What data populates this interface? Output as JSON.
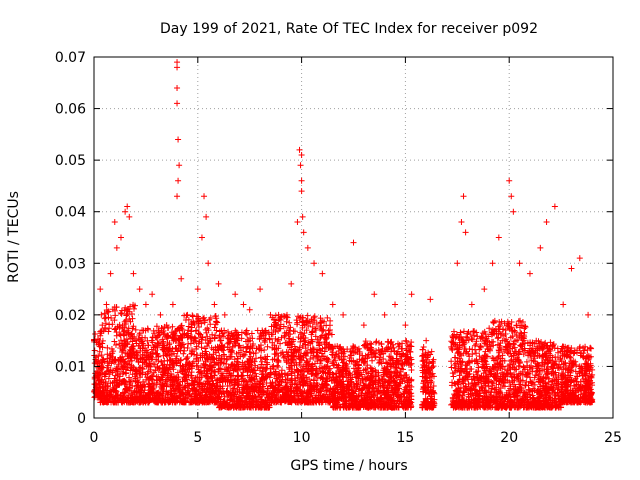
{
  "chart_data": {
    "type": "scatter",
    "title": "Day 199 of 2021, Rate Of TEC Index for receiver p092",
    "xlabel": "GPS time / hours",
    "ylabel": "ROTI / TECUs",
    "xlim": [
      0,
      25
    ],
    "ylim": [
      0,
      0.07
    ],
    "x_ticks": [
      "0",
      "5",
      "10",
      "15",
      "20",
      "25"
    ],
    "y_ticks": [
      "0",
      "0.01",
      "0.02",
      "0.03",
      "0.04",
      "0.05",
      "0.06",
      "0.07"
    ],
    "grid": true,
    "marker": "+",
    "color": "#ff0000",
    "series": [
      {
        "points": [
          [
            0.1,
            0.006
          ],
          [
            0.2,
            0.012
          ],
          [
            0.3,
            0.025
          ],
          [
            0.4,
            0.018
          ],
          [
            0.6,
            0.022
          ],
          [
            0.8,
            0.028
          ],
          [
            1.0,
            0.038
          ],
          [
            1.1,
            0.033
          ],
          [
            1.3,
            0.035
          ],
          [
            1.5,
            0.04
          ],
          [
            1.6,
            0.041
          ],
          [
            1.7,
            0.039
          ],
          [
            1.9,
            0.028
          ],
          [
            2.2,
            0.025
          ],
          [
            2.5,
            0.022
          ],
          [
            2.8,
            0.024
          ],
          [
            3.2,
            0.02
          ],
          [
            3.5,
            0.018
          ],
          [
            3.8,
            0.022
          ],
          [
            4.0,
            0.069
          ],
          [
            4.0,
            0.068
          ],
          [
            4.0,
            0.064
          ],
          [
            4.0,
            0.061
          ],
          [
            4.05,
            0.054
          ],
          [
            4.1,
            0.049
          ],
          [
            4.05,
            0.046
          ],
          [
            4.0,
            0.043
          ],
          [
            4.2,
            0.027
          ],
          [
            4.5,
            0.02
          ],
          [
            5.0,
            0.025
          ],
          [
            5.2,
            0.035
          ],
          [
            5.3,
            0.043
          ],
          [
            5.4,
            0.039
          ],
          [
            5.5,
            0.03
          ],
          [
            5.8,
            0.022
          ],
          [
            6.0,
            0.026
          ],
          [
            6.3,
            0.02
          ],
          [
            6.8,
            0.024
          ],
          [
            7.2,
            0.022
          ],
          [
            7.5,
            0.021
          ],
          [
            8.0,
            0.025
          ],
          [
            8.5,
            0.02
          ],
          [
            9.0,
            0.019
          ],
          [
            9.5,
            0.026
          ],
          [
            9.8,
            0.038
          ],
          [
            9.9,
            0.052
          ],
          [
            10.0,
            0.051
          ],
          [
            9.95,
            0.049
          ],
          [
            10.0,
            0.046
          ],
          [
            10.0,
            0.044
          ],
          [
            10.05,
            0.039
          ],
          [
            10.1,
            0.036
          ],
          [
            10.3,
            0.033
          ],
          [
            10.6,
            0.03
          ],
          [
            11.0,
            0.028
          ],
          [
            11.5,
            0.022
          ],
          [
            12.0,
            0.02
          ],
          [
            12.5,
            0.034
          ],
          [
            13.0,
            0.018
          ],
          [
            13.5,
            0.024
          ],
          [
            14.0,
            0.02
          ],
          [
            14.5,
            0.022
          ],
          [
            15.0,
            0.018
          ],
          [
            15.3,
            0.024
          ],
          [
            15.8,
            0.012
          ],
          [
            16.0,
            0.015
          ],
          [
            16.2,
            0.023
          ],
          [
            17.5,
            0.03
          ],
          [
            17.8,
            0.043
          ],
          [
            17.7,
            0.038
          ],
          [
            17.9,
            0.036
          ],
          [
            18.2,
            0.022
          ],
          [
            18.8,
            0.025
          ],
          [
            19.2,
            0.03
          ],
          [
            19.5,
            0.035
          ],
          [
            20.0,
            0.046
          ],
          [
            20.1,
            0.043
          ],
          [
            20.2,
            0.04
          ],
          [
            20.5,
            0.03
          ],
          [
            21.0,
            0.028
          ],
          [
            21.5,
            0.033
          ],
          [
            21.8,
            0.038
          ],
          [
            22.2,
            0.041
          ],
          [
            22.6,
            0.022
          ],
          [
            23.0,
            0.029
          ],
          [
            23.4,
            0.031
          ],
          [
            23.8,
            0.02
          ],
          [
            23.9,
            0.008
          ]
        ]
      }
    ],
    "bands": [
      [
        0.0,
        0.3,
        0.004,
        0.017
      ],
      [
        0.3,
        2.0,
        0.003,
        0.022
      ],
      [
        2.0,
        4.2,
        0.003,
        0.018
      ],
      [
        4.2,
        6.0,
        0.003,
        0.02
      ],
      [
        6.0,
        8.5,
        0.002,
        0.017
      ],
      [
        8.5,
        11.5,
        0.003,
        0.02
      ],
      [
        11.5,
        13.0,
        0.002,
        0.014
      ],
      [
        13.0,
        15.3,
        0.002,
        0.015
      ],
      [
        15.8,
        16.4,
        0.002,
        0.014
      ],
      [
        17.2,
        19.0,
        0.002,
        0.017
      ],
      [
        19.0,
        20.8,
        0.002,
        0.019
      ],
      [
        20.8,
        22.5,
        0.002,
        0.015
      ],
      [
        22.5,
        24.0,
        0.003,
        0.014
      ]
    ]
  }
}
